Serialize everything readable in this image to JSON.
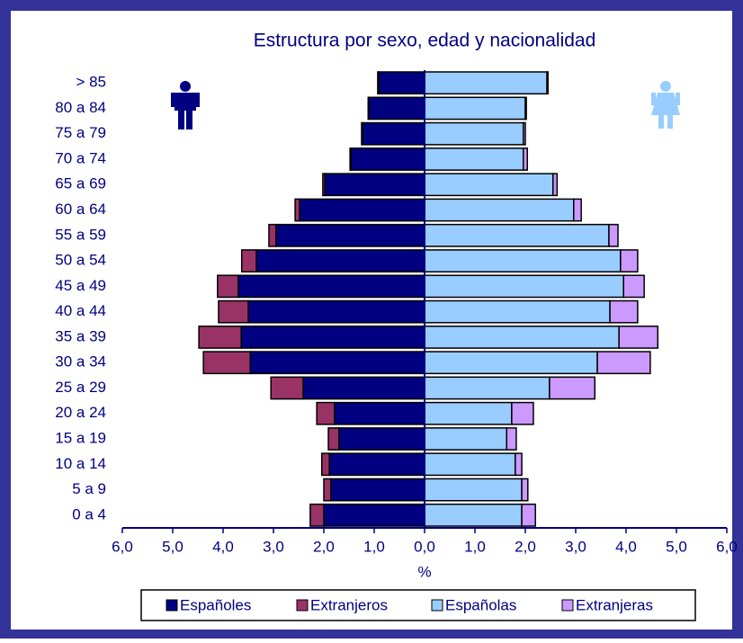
{
  "chart_data": {
    "type": "pyramid",
    "title": "Estructura por sexo, edad y nacionalidad",
    "xlabel": "%",
    "categories": [
      "0 a 4",
      "5 a 9",
      "10 a 14",
      "15 a 19",
      "20 a 24",
      "25 a 29",
      "30 a 34",
      "35 a 39",
      "40 a 44",
      "45 a 49",
      "50 a 54",
      "55 a 59",
      "60 a 64",
      "65 a 69",
      "70 a 74",
      "75 a 79",
      "80 a 84",
      "> 85"
    ],
    "series": [
      {
        "name": "Españoles",
        "color": "#000080",
        "values": [
          -2.0,
          -1.86,
          -1.89,
          -1.7,
          -1.79,
          -2.41,
          -3.46,
          -3.64,
          -3.5,
          -3.7,
          -3.34,
          -2.95,
          -2.48,
          -1.98,
          -1.46,
          -1.23,
          -1.11,
          -0.91
        ]
      },
      {
        "name": "Extranjeros",
        "color": "#993366",
        "values": [
          -0.27,
          -0.14,
          -0.15,
          -0.21,
          -0.35,
          -0.64,
          -0.93,
          -0.84,
          -0.59,
          -0.41,
          -0.29,
          -0.14,
          -0.09,
          -0.04,
          -0.02,
          -0.02,
          -0.01,
          -0.02
        ]
      },
      {
        "name": "Españolas",
        "color": "#99ccff",
        "values": [
          1.93,
          1.93,
          1.8,
          1.63,
          1.73,
          2.48,
          3.43,
          3.86,
          3.68,
          3.95,
          3.89,
          3.66,
          2.96,
          2.55,
          1.96,
          1.96,
          2.0,
          2.43
        ]
      },
      {
        "name": "Extranjeras",
        "color": "#cc99ff",
        "values": [
          0.27,
          0.12,
          0.13,
          0.19,
          0.43,
          0.9,
          1.05,
          0.77,
          0.55,
          0.41,
          0.34,
          0.18,
          0.15,
          0.08,
          0.08,
          0.04,
          0.02,
          0.02
        ]
      }
    ],
    "xlim": [
      -6,
      6
    ],
    "xticks": [
      {
        "value": -6,
        "label": "6,0"
      },
      {
        "value": -5,
        "label": "5,0"
      },
      {
        "value": -4,
        "label": "4,0"
      },
      {
        "value": -3,
        "label": "3,0"
      },
      {
        "value": -2,
        "label": "2,0"
      },
      {
        "value": -1,
        "label": "1,0"
      },
      {
        "value": 0,
        "label": "0,0"
      },
      {
        "value": 1,
        "label": "1,0"
      },
      {
        "value": 2,
        "label": "2,0"
      },
      {
        "value": 3,
        "label": "3,0"
      },
      {
        "value": 4,
        "label": "4,0"
      },
      {
        "value": 5,
        "label": "5,0"
      },
      {
        "value": 6,
        "label": "6,0"
      }
    ],
    "legend": "bottom"
  }
}
